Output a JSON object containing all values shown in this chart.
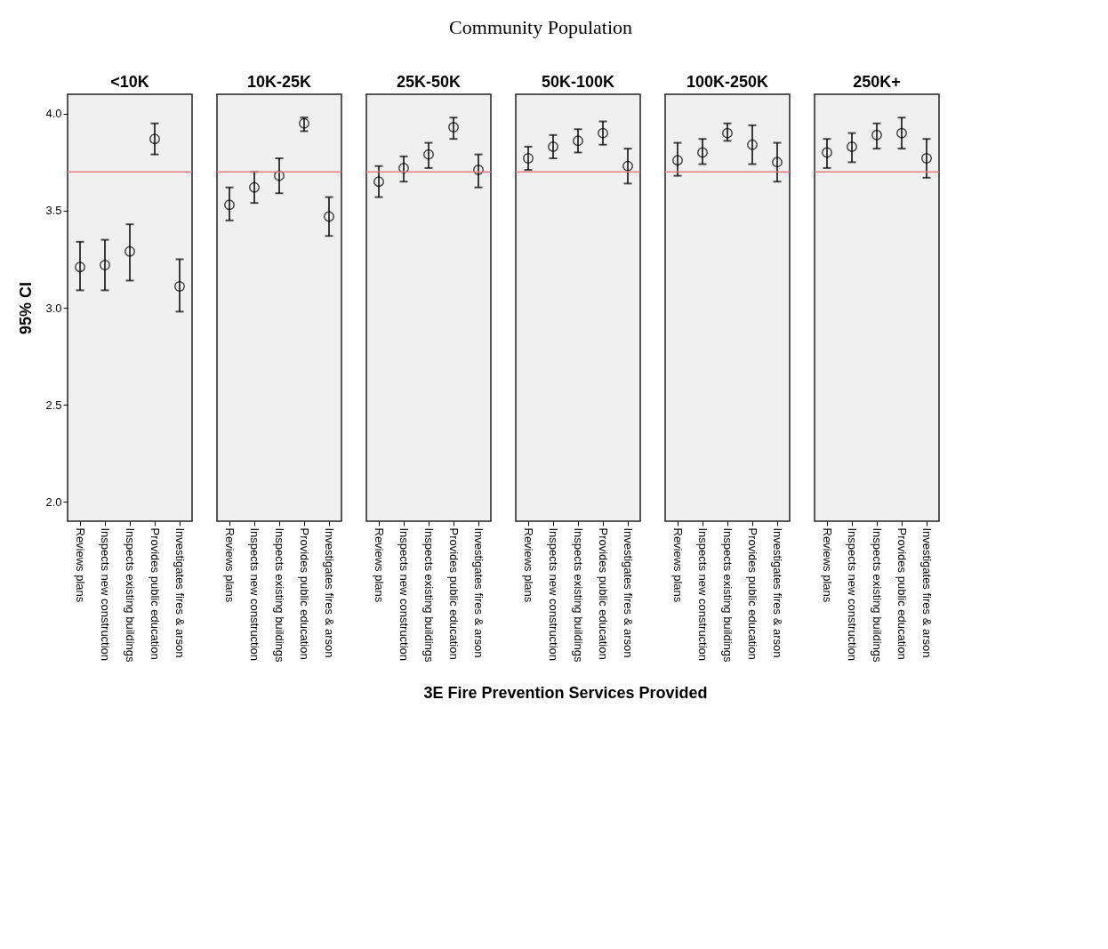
{
  "chart_data": [
    {
      "type": "scatter",
      "title": "<10K",
      "ylabel": "95% CI",
      "categories": [
        "Reviews plans",
        "Inspects new construction",
        "Inspects existing buildings",
        "Provides public education",
        "Investigates fires & arson"
      ],
      "series": [
        {
          "color": "#000000",
          "values": [
            3.21,
            3.22,
            3.29,
            3.87,
            3.11
          ],
          "errors": [
            [
              3.09,
              3.34
            ],
            [
              3.09,
              3.35
            ],
            [
              3.14,
              3.43
            ],
            [
              3.79,
              3.95
            ],
            [
              2.98,
              3.25
            ]
          ]
        }
      ],
      "ylim": [
        1.9,
        4.1
      ],
      "yticks": [
        {
          "value": 2,
          "label": "2.0"
        },
        {
          "value": 2.5,
          "label": "2.5"
        },
        {
          "value": 3,
          "label": "3.0"
        },
        {
          "value": 3.5,
          "label": "3.5"
        },
        {
          "value": 4,
          "label": "4.0"
        }
      ],
      "ref_lines": [
        {
          "axis": "y",
          "value": 3.7,
          "color": "#f08080"
        }
      ],
      "marker": "circle"
    },
    {
      "type": "scatter",
      "title": "10K-25K",
      "categories": [
        "Reviews plans",
        "Inspects new construction",
        "Inspects existing buildings",
        "Provides public education",
        "Investigates fires & arson"
      ],
      "series": [
        {
          "color": "#000000",
          "values": [
            3.53,
            3.62,
            3.68,
            3.95,
            3.47
          ],
          "errors": [
            [
              3.45,
              3.62
            ],
            [
              3.54,
              3.7
            ],
            [
              3.59,
              3.77
            ],
            [
              3.91,
              3.98
            ],
            [
              3.37,
              3.57
            ]
          ]
        }
      ],
      "ylim": [
        1.9,
        4.1
      ],
      "tick_labels": "x",
      "ref_lines": [
        {
          "axis": "y",
          "value": 3.7,
          "color": "#f08080"
        }
      ],
      "marker": "circle"
    },
    {
      "type": "scatter",
      "title": "25K-50K",
      "xlabel": "3E Fire Prevention Services Provided",
      "annotations": [
        "Community Population"
      ],
      "categories": [
        "Reviews plans",
        "Inspects new construction",
        "Inspects existing buildings",
        "Provides public education",
        "Investigates fires & arson"
      ],
      "series": [
        {
          "color": "#000000",
          "values": [
            3.65,
            3.72,
            3.79,
            3.93,
            3.71
          ],
          "errors": [
            [
              3.57,
              3.73
            ],
            [
              3.65,
              3.78
            ],
            [
              3.72,
              3.85
            ],
            [
              3.87,
              3.98
            ],
            [
              3.62,
              3.79
            ]
          ]
        }
      ],
      "ylim": [
        1.9,
        4.1
      ],
      "tick_labels": "x",
      "ref_lines": [
        {
          "axis": "y",
          "value": 3.7,
          "color": "#f08080"
        }
      ],
      "marker": "circle"
    },
    {
      "type": "scatter",
      "title": "50K-100K",
      "categories": [
        "Reviews plans",
        "Inspects new construction",
        "Inspects existing buildings",
        "Provides public education",
        "Investigates fires & arson"
      ],
      "series": [
        {
          "color": "#000000",
          "values": [
            3.77,
            3.83,
            3.86,
            3.9,
            3.73
          ],
          "errors": [
            [
              3.71,
              3.83
            ],
            [
              3.77,
              3.89
            ],
            [
              3.8,
              3.92
            ],
            [
              3.84,
              3.96
            ],
            [
              3.64,
              3.82
            ]
          ]
        }
      ],
      "ylim": [
        1.9,
        4.1
      ],
      "tick_labels": "x",
      "ref_lines": [
        {
          "axis": "y",
          "value": 3.7,
          "color": "#f08080"
        }
      ],
      "marker": "circle"
    },
    {
      "type": "scatter",
      "title": "100K-250K",
      "categories": [
        "Reviews plans",
        "Inspects new construction",
        "Inspects existing buildings",
        "Provides public education",
        "Investigates fires & arson"
      ],
      "series": [
        {
          "color": "#000000",
          "values": [
            3.76,
            3.8,
            3.9,
            3.84,
            3.75
          ],
          "errors": [
            [
              3.68,
              3.85
            ],
            [
              3.74,
              3.87
            ],
            [
              3.86,
              3.95
            ],
            [
              3.74,
              3.94
            ],
            [
              3.65,
              3.85
            ]
          ]
        }
      ],
      "ylim": [
        1.9,
        4.1
      ],
      "tick_labels": "x",
      "ref_lines": [
        {
          "axis": "y",
          "value": 3.7,
          "color": "#f08080"
        }
      ],
      "marker": "circle"
    },
    {
      "type": "scatter",
      "title": "250K+",
      "categories": [
        "Reviews plans",
        "Inspects new construction",
        "Inspects existing buildings",
        "Provides public education",
        "Investigates fires & arson"
      ],
      "series": [
        {
          "color": "#000000",
          "values": [
            3.8,
            3.83,
            3.89,
            3.9,
            3.77
          ],
          "errors": [
            [
              3.72,
              3.87
            ],
            [
              3.75,
              3.9
            ],
            [
              3.82,
              3.95
            ],
            [
              3.82,
              3.98
            ],
            [
              3.67,
              3.87
            ]
          ]
        }
      ],
      "ylim": [
        1.9,
        4.1
      ],
      "tick_labels": "x",
      "ref_lines": [
        {
          "axis": "y",
          "value": 3.7,
          "color": "#f08080"
        }
      ],
      "marker": "circle"
    }
  ]
}
